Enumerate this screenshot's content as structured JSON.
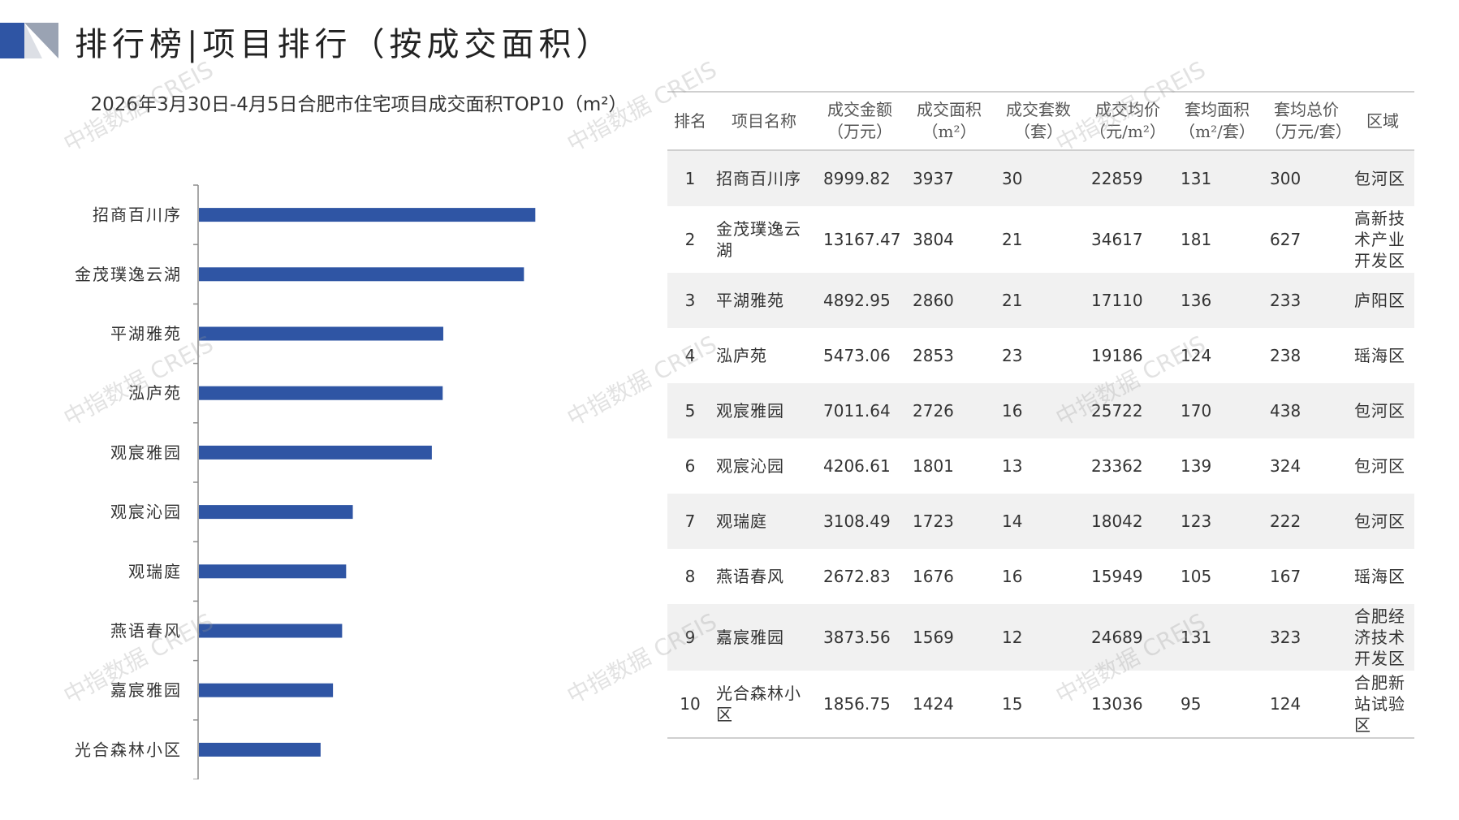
{
  "page": {
    "title": "排行榜|项目排行（按成交面积）",
    "watermark": "中指数据 CREIS"
  },
  "colors": {
    "bar": "#2f55a4",
    "accent": "#2f55a4",
    "row_stripe": "#f1f1f1"
  },
  "chart_data": {
    "type": "bar",
    "orientation": "horizontal",
    "title": "2026年3月30日-4月5日合肥市住宅项目成交面积TOP10（m²）",
    "categories": [
      "招商百川序",
      "金茂璞逸云湖",
      "平湖雅苑",
      "泓庐苑",
      "观宸雅园",
      "观宸沁园",
      "观瑞庭",
      "燕语春风",
      "嘉宸雅园",
      "光合森林小区"
    ],
    "values": [
      3937,
      3804,
      2860,
      2853,
      2726,
      1801,
      1723,
      1676,
      1569,
      1424
    ],
    "xlim": [
      0,
      4200
    ],
    "grid": false,
    "legend": "none"
  },
  "table": {
    "headers": [
      "排名",
      "项目名称",
      "成交金额\n（万元）",
      "成交面积\n（m²）",
      "成交套数\n（套）",
      "成交均价\n（元/m²）",
      "套均面积\n（m²/套）",
      "套均总价\n（万元/套）",
      "区域"
    ],
    "rows": [
      [
        "1",
        "招商百川序",
        "8999.82",
        "3937",
        "30",
        "22859",
        "131",
        "300",
        "包河区"
      ],
      [
        "2",
        "金茂璞逸云湖",
        "13167.47",
        "3804",
        "21",
        "34617",
        "181",
        "627",
        "高新技术产业开发区"
      ],
      [
        "3",
        "平湖雅苑",
        "4892.95",
        "2860",
        "21",
        "17110",
        "136",
        "233",
        "庐阳区"
      ],
      [
        "4",
        "泓庐苑",
        "5473.06",
        "2853",
        "23",
        "19186",
        "124",
        "238",
        "瑶海区"
      ],
      [
        "5",
        "观宸雅园",
        "7011.64",
        "2726",
        "16",
        "25722",
        "170",
        "438",
        "包河区"
      ],
      [
        "6",
        "观宸沁园",
        "4206.61",
        "1801",
        "13",
        "23362",
        "139",
        "324",
        "包河区"
      ],
      [
        "7",
        "观瑞庭",
        "3108.49",
        "1723",
        "14",
        "18042",
        "123",
        "222",
        "包河区"
      ],
      [
        "8",
        "燕语春风",
        "2672.83",
        "1676",
        "16",
        "15949",
        "105",
        "167",
        "瑶海区"
      ],
      [
        "9",
        "嘉宸雅园",
        "3873.56",
        "1569",
        "12",
        "24689",
        "131",
        "323",
        "合肥经济技术开发区"
      ],
      [
        "10",
        "光合森林小区",
        "1856.75",
        "1424",
        "15",
        "13036",
        "95",
        "124",
        "合肥新站试验区"
      ]
    ]
  }
}
